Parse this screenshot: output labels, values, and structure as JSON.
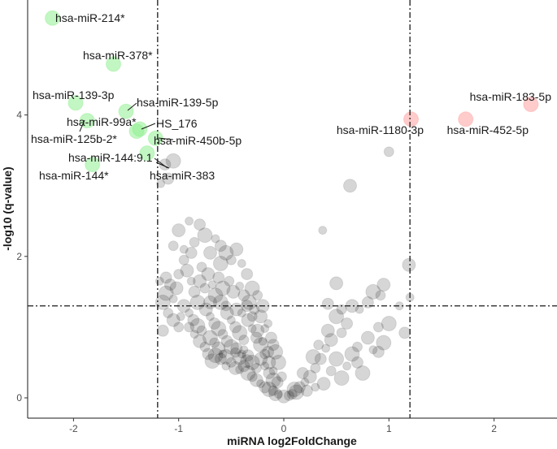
{
  "chart_data": {
    "type": "scatter",
    "title": "",
    "xlabel": "miRNA log2FoldChange",
    "ylabel": "-log10 (q-value)",
    "xlim": [
      -2.4,
      2.6
    ],
    "ylim": [
      -0.25,
      5.5
    ],
    "xticks": [
      -2,
      -1,
      0,
      1,
      2
    ],
    "yticks": [
      0,
      2,
      4
    ],
    "thresholds": {
      "fold_change": [
        -1.2,
        1.2
      ],
      "q_value": 1.3
    },
    "grid": false,
    "legend": "none",
    "colors": {
      "down": "#90EE90",
      "up": "#FFA0A0",
      "ns": "#000000",
      "lines": "#1a1a1a"
    },
    "labeled_points": [
      {
        "label": "hsa-miR-214*",
        "x": -2.2,
        "y": 5.37,
        "group": "down"
      },
      {
        "label": "hsa-miR-378*",
        "x": -1.62,
        "y": 4.72,
        "group": "down"
      },
      {
        "label": "hsa-miR-139-3p",
        "x": -1.98,
        "y": 4.17,
        "group": "down"
      },
      {
        "label": "hsa-miR-139-5p",
        "x": -1.5,
        "y": 4.05,
        "group": "down"
      },
      {
        "label": "hsa-miR-99a*",
        "x": -1.87,
        "y": 3.92,
        "group": "down"
      },
      {
        "label": "HS_176",
        "x": -1.37,
        "y": 3.8,
        "group": "down"
      },
      {
        "label": "hsa-miR-125b-2*",
        "x": -1.4,
        "y": 3.77,
        "group": "down"
      },
      {
        "label": "hsa-miR-450b-5p",
        "x": -1.22,
        "y": 3.67,
        "group": "down"
      },
      {
        "label": "hsa-miR-144:9.1",
        "x": -1.3,
        "y": 3.46,
        "group": "down"
      },
      {
        "label": "hsa-miR-144*",
        "x": -1.82,
        "y": 3.3,
        "group": "down"
      },
      {
        "label": "hsa-miR-383",
        "x": -1.13,
        "y": 3.3,
        "group": "ns"
      },
      {
        "label": "hsa-miR-1180-3p",
        "x": 1.21,
        "y": 3.94,
        "group": "up"
      },
      {
        "label": "hsa-miR-183-5p",
        "x": 2.35,
        "y": 4.15,
        "group": "up"
      },
      {
        "label": "hsa-miR-452-5p",
        "x": 1.73,
        "y": 3.94,
        "group": "up"
      }
    ],
    "other_points": [
      [
        -1.17,
        3.03
      ],
      [
        -1.1,
        3.1
      ],
      [
        -1.05,
        3.35
      ],
      [
        1.0,
        3.48
      ],
      [
        0.63,
        3.0
      ],
      [
        -1.18,
        1.65
      ],
      [
        -1.12,
        1.7
      ],
      [
        -1.15,
        1.35
      ],
      [
        -1.1,
        1.2
      ],
      [
        1.19,
        1.88
      ],
      [
        1.2,
        1.42
      ],
      [
        1.15,
        0.92
      ],
      [
        1.0,
        1.05
      ],
      [
        0.9,
        1.0
      ],
      [
        0.5,
        1.62
      ],
      [
        0.37,
        2.37
      ],
      [
        0.42,
        1.33
      ],
      [
        0.5,
        1.15
      ],
      [
        0.55,
        1.25
      ],
      [
        0.65,
        1.3
      ],
      [
        0.72,
        1.25
      ],
      [
        0.8,
        1.35
      ],
      [
        0.85,
        1.5
      ],
      [
        0.92,
        1.45
      ],
      [
        0.95,
        1.6
      ],
      [
        1.1,
        1.3
      ],
      [
        0.6,
        1.05
      ],
      [
        0.65,
        0.62
      ],
      [
        0.7,
        0.72
      ],
      [
        0.8,
        0.85
      ],
      [
        0.85,
        0.68
      ],
      [
        0.9,
        0.65
      ],
      [
        0.95,
        0.78
      ],
      [
        0.55,
        0.92
      ],
      [
        0.45,
        0.82
      ],
      [
        0.4,
        0.7
      ],
      [
        0.35,
        0.55
      ],
      [
        0.5,
        0.55
      ],
      [
        0.3,
        0.42
      ],
      [
        0.25,
        0.3
      ],
      [
        0.2,
        0.22
      ],
      [
        0.15,
        0.15
      ],
      [
        0.12,
        0.08
      ],
      [
        0.05,
        0.03
      ],
      [
        0.0,
        0.02
      ],
      [
        -0.05,
        0.05
      ],
      [
        0.18,
        0.35
      ],
      [
        0.28,
        0.58
      ],
      [
        0.33,
        0.75
      ],
      [
        0.42,
        0.95
      ],
      [
        0.6,
        0.45
      ],
      [
        0.7,
        0.5
      ],
      [
        0.75,
        0.35
      ],
      [
        0.45,
        0.38
      ],
      [
        0.38,
        0.2
      ],
      [
        0.3,
        0.15
      ],
      [
        0.22,
        0.1
      ],
      [
        0.55,
        0.28
      ],
      [
        -1.05,
        2.15
      ],
      [
        -1.0,
        2.37
      ],
      [
        -0.9,
        2.5
      ],
      [
        -0.8,
        2.45
      ],
      [
        -0.75,
        2.3
      ],
      [
        -0.85,
        2.2
      ],
      [
        -0.7,
        2.05
      ],
      [
        -0.65,
        2.25
      ],
      [
        -0.6,
        2.15
      ],
      [
        -0.55,
        2.05
      ],
      [
        -0.5,
        1.95
      ],
      [
        -0.45,
        2.1
      ],
      [
        -0.4,
        1.9
      ],
      [
        -0.35,
        1.75
      ],
      [
        -0.3,
        1.55
      ],
      [
        -0.25,
        1.45
      ],
      [
        -0.2,
        1.3
      ],
      [
        -0.15,
        1.05
      ],
      [
        -0.1,
        0.75
      ],
      [
        -0.05,
        0.5
      ],
      [
        -0.95,
        1.95
      ],
      [
        -0.92,
        1.8
      ],
      [
        -0.88,
        1.65
      ],
      [
        -0.85,
        1.5
      ],
      [
        -0.82,
        1.35
      ],
      [
        -1.0,
        1.75
      ],
      [
        -1.02,
        1.55
      ],
      [
        -1.05,
        1.4
      ],
      [
        -1.08,
        1.6
      ],
      [
        -1.12,
        1.48
      ],
      [
        -0.78,
        1.85
      ],
      [
        -0.72,
        1.75
      ],
      [
        -0.68,
        1.6
      ],
      [
        -0.62,
        1.7
      ],
      [
        -0.58,
        1.55
      ],
      [
        -0.52,
        1.65
      ],
      [
        -0.48,
        1.5
      ],
      [
        -0.42,
        1.58
      ],
      [
        -0.38,
        1.45
      ],
      [
        -0.33,
        1.35
      ],
      [
        -0.28,
        1.25
      ],
      [
        -0.22,
        1.15
      ],
      [
        -0.18,
        0.98
      ],
      [
        -0.12,
        0.85
      ],
      [
        -0.08,
        0.65
      ],
      [
        -0.02,
        0.3
      ],
      [
        -0.95,
        1.3
      ],
      [
        -0.9,
        1.2
      ],
      [
        -0.86,
        1.1
      ],
      [
        -0.82,
        1.02
      ],
      [
        -0.78,
        0.95
      ],
      [
        -0.74,
        1.25
      ],
      [
        -0.7,
        1.15
      ],
      [
        -0.66,
        1.05
      ],
      [
        -0.62,
        0.98
      ],
      [
        -0.58,
        0.9
      ],
      [
        -0.54,
        1.2
      ],
      [
        -0.5,
        1.1
      ],
      [
        -0.46,
        1.0
      ],
      [
        -0.42,
        0.92
      ],
      [
        -0.38,
        0.82
      ],
      [
        -0.34,
        1.1
      ],
      [
        -0.3,
        0.98
      ],
      [
        -0.26,
        0.85
      ],
      [
        -0.22,
        0.75
      ],
      [
        -0.18,
        0.62
      ],
      [
        -0.14,
        0.5
      ],
      [
        -0.1,
        0.38
      ],
      [
        -0.06,
        0.22
      ],
      [
        -0.7,
        0.85
      ],
      [
        -0.66,
        0.78
      ],
      [
        -0.62,
        0.7
      ],
      [
        -0.58,
        0.62
      ],
      [
        -0.54,
        0.8
      ],
      [
        -0.5,
        0.72
      ],
      [
        -0.46,
        0.64
      ],
      [
        -0.42,
        0.56
      ],
      [
        -0.38,
        0.68
      ],
      [
        -0.34,
        0.6
      ],
      [
        -0.3,
        0.5
      ],
      [
        -0.26,
        0.42
      ],
      [
        -0.22,
        0.55
      ],
      [
        -0.18,
        0.45
      ],
      [
        -0.14,
        0.35
      ],
      [
        -0.1,
        0.25
      ],
      [
        -0.5,
        0.5
      ],
      [
        -0.46,
        0.42
      ],
      [
        -0.42,
        0.4
      ],
      [
        -0.38,
        0.45
      ],
      [
        -0.34,
        0.35
      ],
      [
        -0.3,
        0.3
      ],
      [
        -0.26,
        0.25
      ],
      [
        -0.22,
        0.2
      ],
      [
        -0.18,
        0.15
      ],
      [
        -0.14,
        0.12
      ],
      [
        -0.1,
        0.1
      ],
      [
        -0.08,
        0.05
      ],
      [
        -0.55,
        0.45
      ],
      [
        -0.6,
        0.55
      ],
      [
        -0.65,
        0.6
      ],
      [
        -0.75,
        0.72
      ],
      [
        -0.8,
        0.8
      ],
      [
        -0.85,
        0.9
      ],
      [
        -0.72,
        0.62
      ],
      [
        -0.68,
        0.52
      ],
      [
        -1.0,
        1.0
      ],
      [
        -1.05,
        1.1
      ],
      [
        -0.98,
        1.15
      ],
      [
        -1.15,
        0.95
      ],
      [
        -0.6,
        1.35
      ],
      [
        -0.55,
        1.3
      ],
      [
        -0.45,
        1.25
      ],
      [
        -0.4,
        1.2
      ],
      [
        -0.35,
        1.3
      ],
      [
        -0.65,
        1.45
      ],
      [
        -0.75,
        1.55
      ],
      [
        -0.8,
        1.65
      ],
      [
        -0.95,
        2.1
      ],
      [
        -0.88,
        2.05
      ],
      [
        -0.6,
        1.9
      ],
      [
        -0.3,
        1.15
      ],
      [
        -0.25,
        0.95
      ],
      [
        -0.2,
        0.8
      ],
      [
        -0.15,
        0.65
      ],
      [
        0.1,
        0.12
      ],
      [
        0.08,
        0.05
      ],
      [
        -0.35,
        0.52
      ],
      [
        -0.4,
        0.62
      ],
      [
        -0.45,
        0.7
      ],
      [
        -0.55,
        0.58
      ],
      [
        -0.9,
        1.0
      ],
      [
        -0.7,
        1.35
      ]
    ]
  }
}
